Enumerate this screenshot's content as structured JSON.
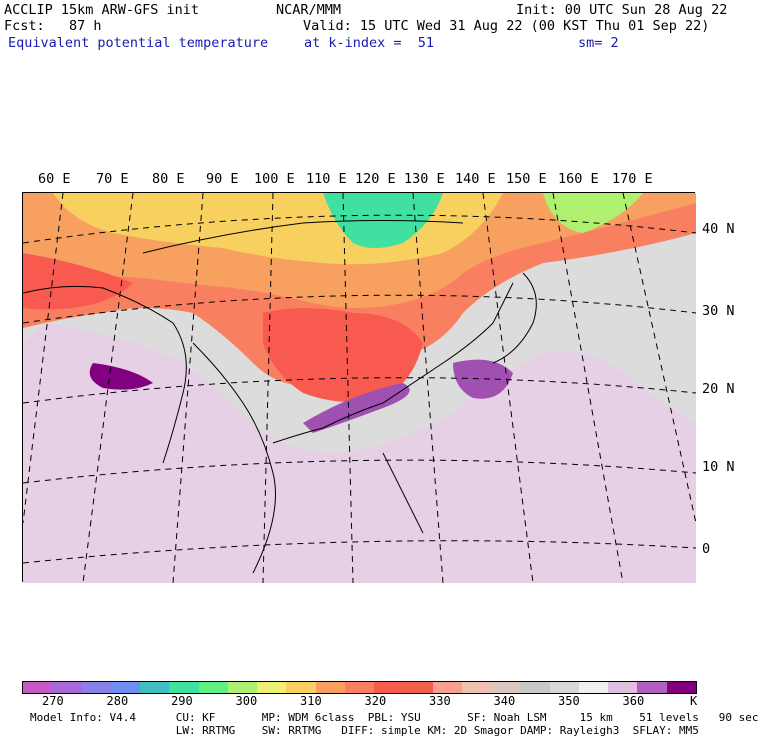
{
  "header": {
    "left1": "ACCLIP 15km ARW-GFS init",
    "left2": "Fcst:   87 h",
    "left3": "Equivalent potential temperature",
    "center1": "NCAR/MMM",
    "init": "Init: 00 UTC Sun 28 Aug 22",
    "valid": "Valid: 15 UTC Wed 31 Aug 22 (00 KST Thu 01 Sep 22)",
    "level": "at k-index =  51",
    "smooth": "sm= 2"
  },
  "map": {
    "lon_labels": [
      "60 E",
      "70 E",
      "80 E",
      "90 E",
      "100 E",
      "110 E",
      "120 E",
      "130 E",
      "140 E",
      "150 E",
      "160 E",
      "170 E"
    ],
    "lat_labels": [
      "40 N",
      "30 N",
      "20 N",
      "10 N",
      "0"
    ]
  },
  "colorbar": {
    "colors": [
      "#c65bc8",
      "#a66ad8",
      "#8b7fe8",
      "#6f8ff0",
      "#3fc0c0",
      "#3fe0a0",
      "#5ef080",
      "#b0f070",
      "#f0f070",
      "#f8d060",
      "#f8a060",
      "#f88060",
      "#f85a50",
      "#f06048",
      "#f8a090",
      "#f0c0b0",
      "#d8c8c0",
      "#c8c8c8",
      "#d8d8d8",
      "#f0f0f0",
      "#e0c0e0",
      "#b060c0",
      "#800080"
    ],
    "ticks": [
      "270",
      "280",
      "290",
      "300",
      "310",
      "320",
      "330",
      "340",
      "350",
      "360"
    ],
    "unit": "K"
  },
  "footer": {
    "line1": "Model Info: V4.4      CU: KF       MP: WDM 6class  PBL: YSU       SF: Noah LSM     15 km    51 levels   90 sec",
    "line2": "                      LW: RRTMG    SW: RRTMG   DIFF: simple KM: 2D Smagor DAMP: Rayleigh3  SFLAY: MM5"
  }
}
